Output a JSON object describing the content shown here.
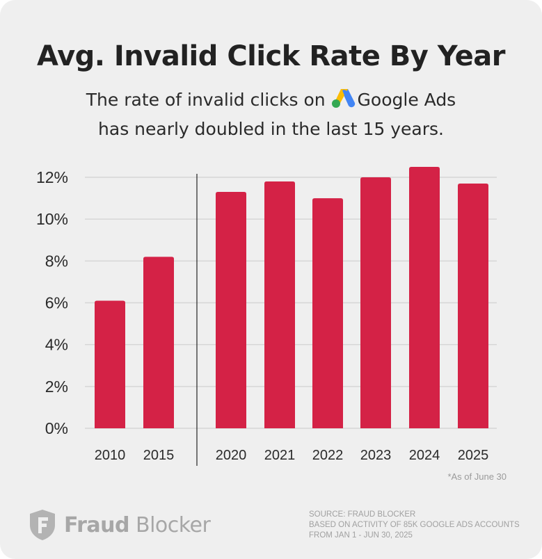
{
  "title": "Avg. Invalid Click Rate By Year",
  "subtitle": {
    "line1_before": "The rate of invalid clicks on",
    "brand": "Google Ads",
    "line2": "has nearly doubled in the last 15 years."
  },
  "colors": {
    "bar": "#d42246",
    "background": "#efefef",
    "grid": "#d6d6d6"
  },
  "chart_data": {
    "type": "bar",
    "categories": [
      "2010",
      "2015",
      "2020",
      "2021",
      "2022",
      "2023",
      "2024",
      "2025"
    ],
    "values": [
      6.1,
      8.2,
      11.3,
      11.8,
      11.0,
      12.0,
      12.5,
      11.7
    ],
    "unit": "%",
    "yticks": [
      0,
      2,
      4,
      6,
      8,
      10,
      12
    ],
    "ytick_labels": [
      "0%",
      "2%",
      "4%",
      "6%",
      "8%",
      "10%",
      "12%"
    ],
    "ylim": [
      0,
      12.5
    ],
    "grid": true,
    "groups": [
      [
        "2010",
        "2015"
      ],
      [
        "2020",
        "2021",
        "2022",
        "2023",
        "2024",
        "2025"
      ]
    ]
  },
  "footnote": "*As of June 30",
  "logo": {
    "bold": "Fraud",
    "light": " Blocker",
    "icon": "shield-f-icon"
  },
  "source": [
    "SOURCE: FRAUD BLOCKER",
    "BASED ON ACTIVITY OF 85K GOOGLE ADS ACCOUNTS",
    "FROM JAN 1 - JUN 30, 2025"
  ]
}
